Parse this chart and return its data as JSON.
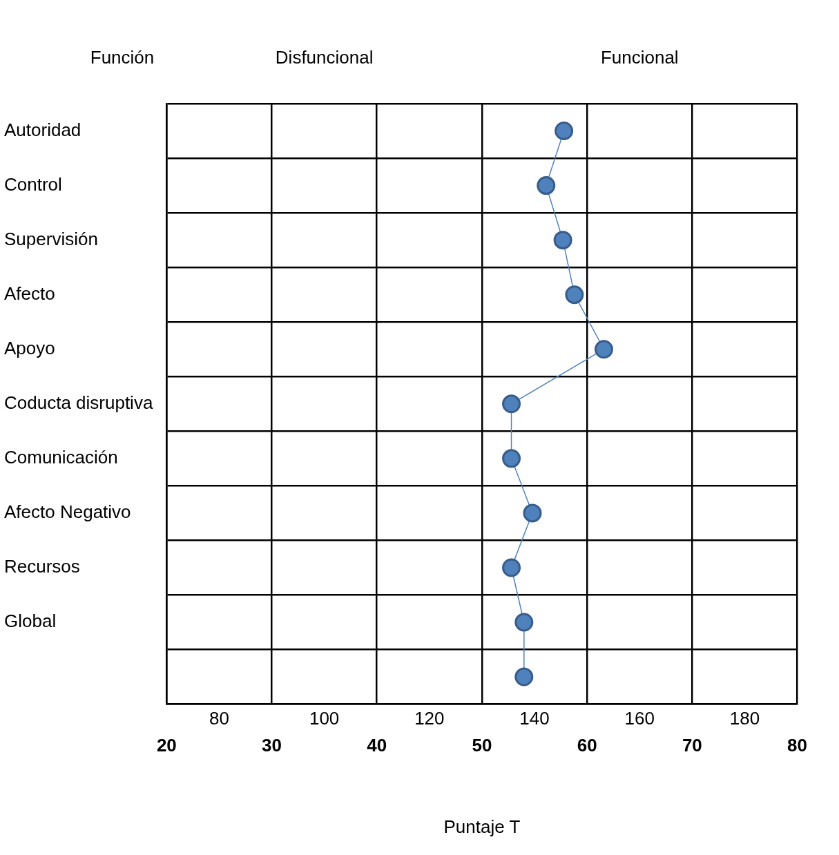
{
  "chart_data": {
    "type": "line",
    "orientation": "horizontal",
    "ylabel": "Función",
    "xlabel": "Puntaje T",
    "categories": [
      "Autoridad",
      "Control",
      "Supervisión",
      "Afecto",
      "Apoyo",
      "Coducta disruptiva",
      "Comunicación",
      "Afecto Negativo",
      "Recursos",
      "Global",
      null
    ],
    "values": [
      57.8,
      56.1,
      57.7,
      58.8,
      61.6,
      52.8,
      52.8,
      54.8,
      52.8,
      54.0,
      54.0
    ],
    "color": "#4f81bd",
    "marker": "circle",
    "line_style": "solid",
    "xlim": [
      20,
      80
    ],
    "xticks": [
      20,
      30,
      40,
      50,
      60,
      70,
      80
    ],
    "grid": true,
    "annotations": [
      "Disfuncional",
      "Funcional",
      "80",
      "100",
      "120",
      "140",
      "160",
      "180"
    ]
  }
}
